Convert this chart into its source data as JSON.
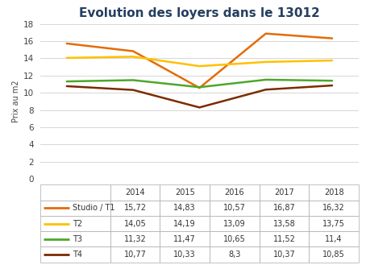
{
  "title": "Evolution des loyers dans le 13012",
  "ylabel": "Prix au m2",
  "years": [
    2014,
    2015,
    2016,
    2017,
    2018
  ],
  "series_order": [
    "Studio / T1",
    "T2",
    "T3",
    "T4"
  ],
  "series": {
    "Studio / T1": {
      "values": [
        15.72,
        14.83,
        10.57,
        16.87,
        16.32
      ],
      "color": "#E36C09",
      "linewidth": 1.8
    },
    "T2": {
      "values": [
        14.05,
        14.19,
        13.09,
        13.58,
        13.75
      ],
      "color": "#FFC000",
      "linewidth": 1.8
    },
    "T3": {
      "values": [
        11.32,
        11.47,
        10.65,
        11.52,
        11.4
      ],
      "color": "#4EA72A",
      "linewidth": 1.8
    },
    "T4": {
      "values": [
        10.77,
        10.33,
        8.3,
        10.37,
        10.85
      ],
      "color": "#7B2C00",
      "linewidth": 1.8
    }
  },
  "ylim": [
    0,
    18
  ],
  "yticks": [
    0,
    2,
    4,
    6,
    8,
    10,
    12,
    14,
    16,
    18
  ],
  "title_color": "#243F60",
  "title_fontsize": 11,
  "background_color": "#FFFFFF",
  "grid_color": "#D0D0D0",
  "table_years": [
    "2014",
    "2015",
    "2016",
    "2017",
    "2018"
  ],
  "table_values": {
    "Studio / T1": [
      "15,72",
      "14,83",
      "10,57",
      "16,87",
      "16,32"
    ],
    "T2": [
      "14,05",
      "14,19",
      "13,09",
      "13,58",
      "13,75"
    ],
    "T3": [
      "11,32",
      "11,47",
      "10,65",
      "11,52",
      "11,4"
    ],
    "T4": [
      "10,77",
      "10,33",
      "8,3",
      "10,37",
      "10,85"
    ]
  }
}
